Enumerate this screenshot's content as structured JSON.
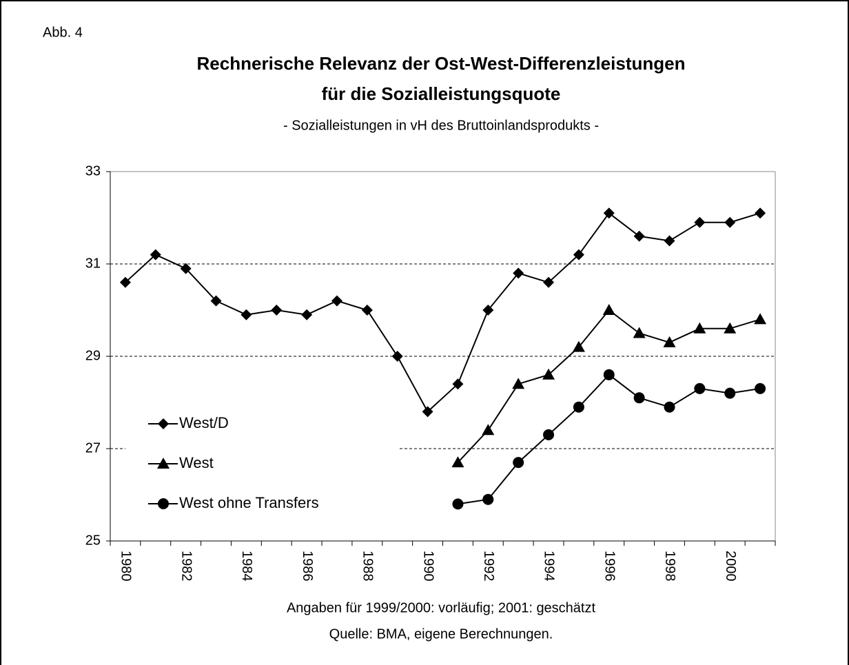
{
  "chart_data": {
    "type": "line",
    "figure_label": "Abb. 4",
    "title": [
      "Rechnerische Relevanz der Ost-West-Differenzleistungen",
      "für die Sozialleistungsquote"
    ],
    "subtitle": "- Sozialleistungen in vH des Bruttoinlandsprodukts -",
    "notes": [
      "Angaben für 1999/2000: vorläufig; 2001: geschätzt",
      "Quelle: BMA, eigene Berechnungen."
    ],
    "categories": [
      "1980",
      null,
      "1982",
      null,
      "1984",
      null,
      "1986",
      null,
      "1988",
      null,
      "1990",
      null,
      "1992",
      null,
      "1994",
      null,
      "1996",
      null,
      "1998",
      null,
      "2000",
      null
    ],
    "series": [
      {
        "name": "West/D",
        "color": "#000000",
        "marker": "diamond",
        "values": [
          30.6,
          31.2,
          30.9,
          30.2,
          29.9,
          30.0,
          29.9,
          30.2,
          30.0,
          29.0,
          27.8,
          28.4,
          30.0,
          30.8,
          30.6,
          31.2,
          32.1,
          31.6,
          31.5,
          31.9,
          31.9,
          32.1
        ]
      },
      {
        "name": "West",
        "color": "#000000",
        "marker": "triangle",
        "values": [
          null,
          null,
          null,
          null,
          null,
          null,
          null,
          null,
          null,
          null,
          null,
          26.7,
          27.4,
          28.4,
          28.6,
          29.2,
          30.0,
          29.5,
          29.3,
          29.6,
          29.6,
          29.8
        ]
      },
      {
        "name": "West ohne Transfers",
        "color": "#000000",
        "marker": "circle",
        "values": [
          null,
          null,
          null,
          null,
          null,
          null,
          null,
          null,
          null,
          null,
          null,
          25.8,
          25.9,
          26.7,
          27.3,
          27.9,
          28.6,
          28.1,
          27.9,
          28.3,
          28.2,
          28.3
        ]
      }
    ],
    "ylim": [
      25,
      33
    ],
    "yticks": [
      25,
      27,
      29,
      31,
      33
    ],
    "grid": true,
    "legend": "lower left"
  }
}
